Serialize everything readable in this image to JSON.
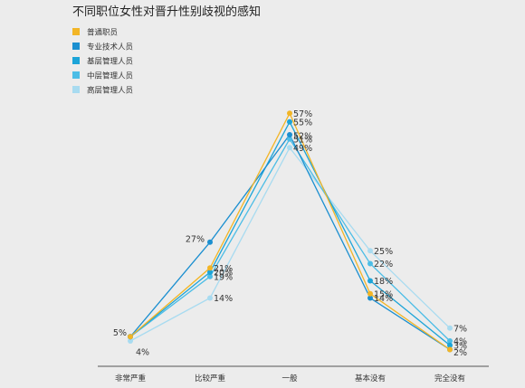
{
  "chart_data": {
    "type": "line",
    "title": "不同职位女性对晋升性别歧视的感知",
    "categories": [
      "非常严重",
      "比较严重",
      "一般",
      "基本没有",
      "完全没有"
    ],
    "series": [
      {
        "name": "普通职员",
        "color": "#f2b526",
        "values": [
          5,
          21,
          57,
          15,
          2
        ]
      },
      {
        "name": "专业技术人员",
        "color": "#1b8fd0",
        "values": [
          5,
          27,
          52,
          14,
          2
        ]
      },
      {
        "name": "基层管理人员",
        "color": "#1ca4d8",
        "values": [
          5,
          20,
          55,
          18,
          3
        ]
      },
      {
        "name": "中层管理人员",
        "color": "#4cbde6",
        "values": [
          5,
          19,
          51,
          22,
          4
        ]
      },
      {
        "name": "高层管理人员",
        "color": "#a8dbf0",
        "values": [
          4,
          14,
          49,
          25,
          7
        ]
      }
    ],
    "data_labels": [
      {
        "series": 1,
        "index": 0,
        "text": "5%"
      },
      {
        "series": 4,
        "index": 0,
        "text": "4%"
      },
      {
        "series": 1,
        "index": 1,
        "text": "27%"
      },
      {
        "series": 0,
        "index": 1,
        "text": "21%"
      },
      {
        "series": 2,
        "index": 1,
        "text": "20%"
      },
      {
        "series": 3,
        "index": 1,
        "text": "19%"
      },
      {
        "series": 4,
        "index": 1,
        "text": "14%"
      },
      {
        "series": 0,
        "index": 2,
        "text": "57%"
      },
      {
        "series": 2,
        "index": 2,
        "text": "55%"
      },
      {
        "series": 1,
        "index": 2,
        "text": "52%"
      },
      {
        "series": 3,
        "index": 2,
        "text": "51%"
      },
      {
        "series": 4,
        "index": 2,
        "text": "49%"
      },
      {
        "series": 4,
        "index": 3,
        "text": "25%"
      },
      {
        "series": 3,
        "index": 3,
        "text": "22%"
      },
      {
        "series": 2,
        "index": 3,
        "text": "18%"
      },
      {
        "series": 0,
        "index": 3,
        "text": "15%"
      },
      {
        "series": 1,
        "index": 3,
        "text": "14%"
      },
      {
        "series": 4,
        "index": 4,
        "text": "7%"
      },
      {
        "series": 3,
        "index": 4,
        "text": "4%"
      },
      {
        "series": 2,
        "index": 4,
        "text": "3%"
      },
      {
        "series": 1,
        "index": 4,
        "text": "2%"
      }
    ],
    "ylim": [
      0,
      60
    ],
    "grid": false,
    "legend": "top-left"
  }
}
